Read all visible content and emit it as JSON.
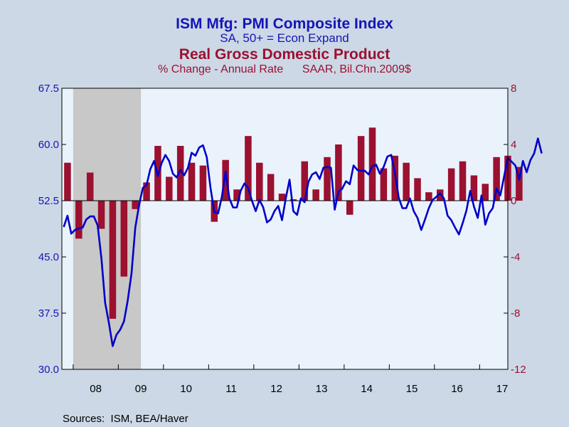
{
  "chart_data": {
    "type": "bar+line",
    "titles": {
      "line_title": "ISM Mfg: PMI Composite Index",
      "line_subtitle": "SA, 50+ = Econ Expand",
      "bar_title": "Real Gross Domestic Product",
      "bar_subtitle": "% Change - Annual Rate      SAAR, Bil.Chn.2009$"
    },
    "source": "Sources:  ISM, BEA/Haver",
    "x_range": [
      2007.75,
      2017.625
    ],
    "x_labels": [
      {
        "label": "08",
        "at": 2008.5
      },
      {
        "label": "09",
        "at": 2009.5
      },
      {
        "label": "10",
        "at": 2010.5
      },
      {
        "label": "11",
        "at": 2011.5
      },
      {
        "label": "12",
        "at": 2012.5
      },
      {
        "label": "13",
        "at": 2013.5
      },
      {
        "label": "14",
        "at": 2014.5
      },
      {
        "label": "15",
        "at": 2015.5
      },
      {
        "label": "16",
        "at": 2016.5
      },
      {
        "label": "17",
        "at": 2017.5
      }
    ],
    "left_axis": {
      "min": 30.0,
      "max": 67.5,
      "ticks": [
        "30.0",
        "37.5",
        "45.0",
        "52.5",
        "60.0",
        "67.5"
      ]
    },
    "right_axis": {
      "min": -12,
      "max": 8,
      "ticks": [
        "-12",
        "-8",
        "-4",
        "0",
        "4",
        "8"
      ]
    },
    "recession": {
      "start": 2008.0,
      "end": 2009.5
    },
    "colors": {
      "line": "#0000c8",
      "bars": "#9c1030",
      "plot_bg": "#eaf3fc",
      "recession_shade": "#c8c8c8",
      "frame_bg": "#ccd8e6"
    },
    "series": [
      {
        "name": "ISM Mfg: PMI Composite Index",
        "axis": "left",
        "kind": "line",
        "start": 2007.75,
        "step": 0.0833333,
        "values": [
          49.0,
          50.5,
          48.1,
          48.6,
          48.8,
          48.9,
          50.0,
          50.4,
          50.4,
          49.2,
          44.8,
          38.9,
          36.2,
          33.1,
          34.6,
          35.3,
          36.4,
          39.2,
          42.8,
          48.9,
          51.9,
          54.2,
          54.6,
          56.7,
          57.8,
          55.8,
          57.5,
          58.6,
          57.8,
          56.1,
          55.6,
          56.6,
          55.9,
          56.9,
          58.9,
          58.5,
          59.6,
          59.9,
          58.3,
          54.2,
          51.0,
          50.8,
          53.0,
          56.4,
          52.8,
          51.6,
          51.6,
          53.8,
          54.8,
          54.2,
          52.5,
          51.1,
          52.6,
          51.6,
          49.6,
          50.0,
          51.1,
          51.8,
          49.9,
          52.8,
          55.3,
          51.1,
          50.6,
          52.8,
          52.3,
          55.0,
          56.0,
          56.3,
          55.4,
          56.9,
          57.0,
          56.9,
          51.3,
          53.7,
          54.1,
          55.1,
          54.7,
          57.2,
          56.6,
          56.5,
          56.5,
          56.0,
          57.1,
          57.3,
          56.1,
          57.0,
          58.4,
          58.6,
          56.2,
          52.9,
          51.5,
          51.5,
          52.8,
          51.1,
          50.2,
          48.6,
          50.0,
          51.5,
          52.6,
          53.0,
          53.5,
          52.8,
          50.5,
          49.9,
          48.9,
          48.0,
          49.5,
          51.2,
          53.8,
          51.7,
          50.2,
          53.2,
          49.3,
          50.8,
          51.5,
          54.1,
          53.2,
          55.7,
          58.2,
          57.7,
          57.2,
          55.3,
          57.8,
          56.3,
          57.9,
          58.8,
          60.8,
          58.8
        ]
      },
      {
        "name": "Real Gross Domestic Product",
        "axis": "right",
        "kind": "bar",
        "start": 2007.75,
        "step": 0.25,
        "values": [
          2.7,
          -2.7,
          2.0,
          -2.0,
          -8.4,
          -5.4,
          -0.6,
          1.3,
          3.9,
          1.7,
          3.9,
          2.7,
          2.5,
          -1.5,
          2.9,
          0.8,
          4.6,
          2.7,
          1.9,
          0.5,
          0.1,
          2.8,
          0.8,
          3.1,
          4.0,
          -1.0,
          4.6,
          5.2,
          2.3,
          3.2,
          2.7,
          1.6,
          0.6,
          0.8,
          2.3,
          2.8,
          1.8,
          1.2,
          3.1,
          3.2,
          2.4
        ]
      }
    ]
  }
}
